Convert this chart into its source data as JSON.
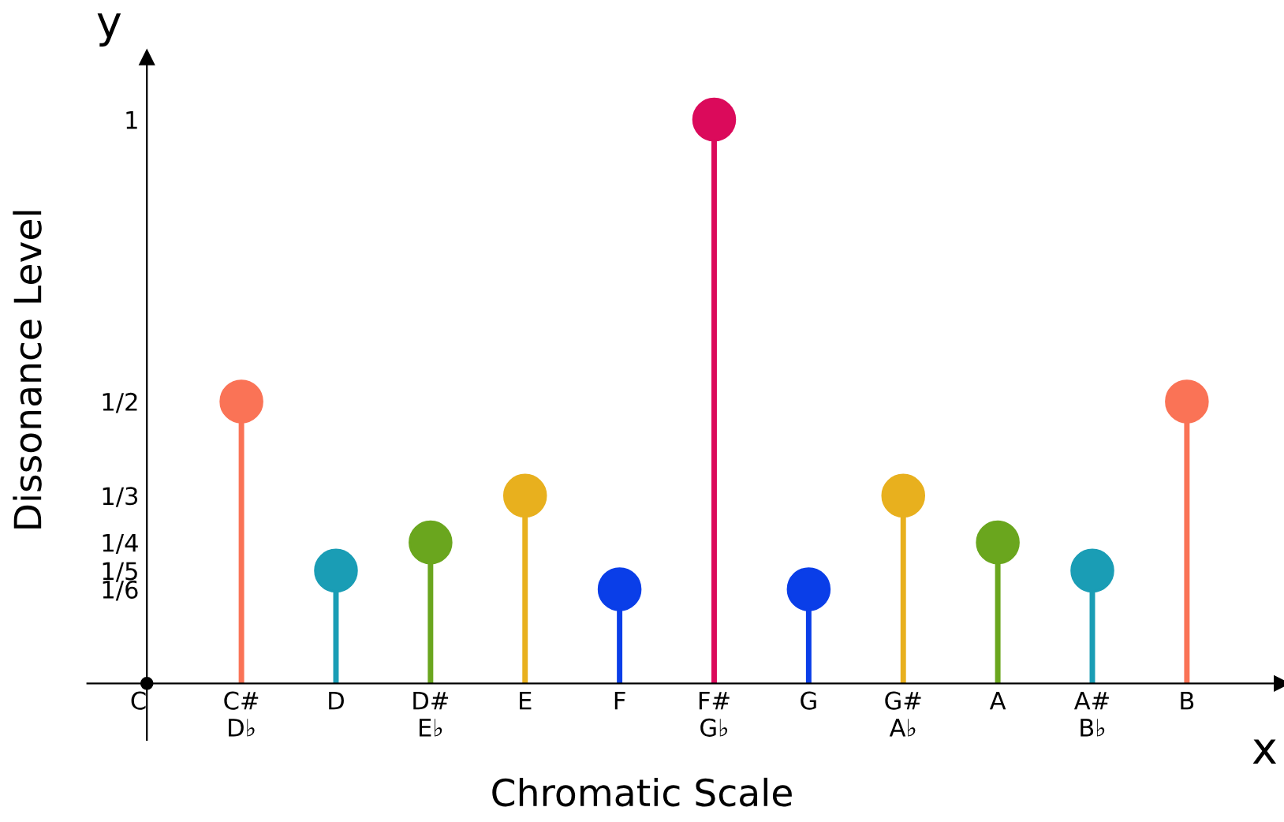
{
  "chart_data": {
    "type": "lollipop",
    "xlabel": "Chromatic Scale",
    "ylabel": "Dissonance Level",
    "annotations": [
      "y",
      "x"
    ],
    "categories": [
      "C",
      "C#\nD♭",
      "D",
      "D#\nE♭",
      "E",
      "F",
      "F#\nG♭",
      "G",
      "G#\nA♭",
      "A",
      "A#\nB♭",
      "B"
    ],
    "values": [
      null,
      0.5,
      0.2,
      0.25,
      0.333,
      0.167,
      1,
      0.167,
      0.333,
      0.25,
      0.2,
      0.5
    ],
    "colors": [
      "#000000",
      "#fa7356",
      "#1a9db5",
      "#6aa61e",
      "#e8b01e",
      "#0a3ee8",
      "#db0a5b",
      "#0a3ee8",
      "#e8b01e",
      "#6aa61e",
      "#1a9db5",
      "#fa7356"
    ],
    "ylim": [
      -0.1,
      1.11
    ],
    "yticks": [
      {
        "value": 1,
        "label": "1"
      },
      {
        "value": 0.5,
        "label": "1/2"
      },
      {
        "value": 0.333,
        "label": "1/3"
      },
      {
        "value": 0.25,
        "label": "1/4"
      },
      {
        "value": 0.2,
        "label": "1/5"
      },
      {
        "value": 0.167,
        "label": "1/6"
      }
    ],
    "grid": false,
    "legend": false,
    "marker": "circle"
  }
}
